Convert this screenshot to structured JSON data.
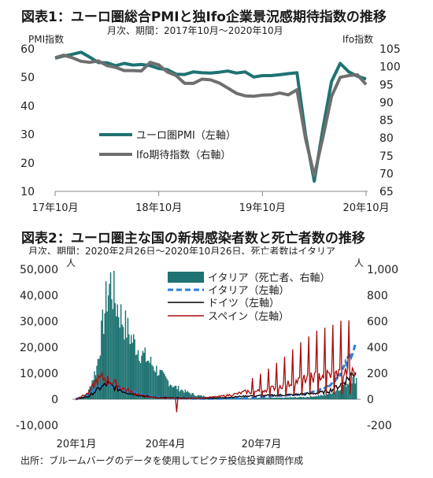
{
  "chart_data": [
    {
      "type": "line",
      "title": "図表1：ユーロ圏総合PMIと独Ifo企業景況感期待指数の推移",
      "subtitle": "月次、期間：2017年10月～2020年10月",
      "y_left_label": "PMI指数",
      "y_right_label": "Ifo指数",
      "ylim_left": [
        10,
        60
      ],
      "ylim_right": [
        65,
        105
      ],
      "yticks_left": [
        "60",
        "50",
        "40",
        "30",
        "20",
        "10"
      ],
      "yticks_right": [
        "105",
        "100",
        "95",
        "90",
        "85",
        "80",
        "75",
        "70",
        "65"
      ],
      "xticks": [
        "17年10月",
        "18年10月",
        "19年10月",
        "20年10月"
      ],
      "x": [
        "2017-10",
        "2017-11",
        "2017-12",
        "2018-01",
        "2018-02",
        "2018-03",
        "2018-04",
        "2018-05",
        "2018-06",
        "2018-07",
        "2018-08",
        "2018-09",
        "2018-10",
        "2018-11",
        "2018-12",
        "2019-01",
        "2019-02",
        "2019-03",
        "2019-04",
        "2019-05",
        "2019-06",
        "2019-07",
        "2019-08",
        "2019-09",
        "2019-10",
        "2019-11",
        "2019-12",
        "2020-01",
        "2020-02",
        "2020-03",
        "2020-04",
        "2020-05",
        "2020-06",
        "2020-07",
        "2020-08",
        "2020-09",
        "2020-10"
      ],
      "series": [
        {
          "name": "ユーロ圏PMI（左軸）",
          "axis": "left",
          "color": "#1f7372",
          "values": [
            56.7,
            57.5,
            58.1,
            58.8,
            57.1,
            55.2,
            55.1,
            54.1,
            54.9,
            54.3,
            54.5,
            54.1,
            53.1,
            52.7,
            51.1,
            51.0,
            51.9,
            51.6,
            51.5,
            51.8,
            52.2,
            51.5,
            51.9,
            50.1,
            50.6,
            50.6,
            50.9,
            51.3,
            51.6,
            29.7,
            13.6,
            31.9,
            48.5,
            54.9,
            51.9,
            50.4,
            49.4
          ]
        },
        {
          "name": "Ifo期待指数（右軸）",
          "axis": "right",
          "color": "#6f6f6f",
          "values": [
            102.5,
            103.2,
            102.5,
            101.5,
            101.2,
            101.6,
            100.3,
            99.8,
            98.9,
            98.9,
            98.8,
            101.2,
            100.5,
            98.5,
            97.5,
            95.3,
            95.3,
            96.5,
            96.3,
            95.4,
            94.0,
            92.5,
            91.8,
            91.7,
            92.0,
            92.1,
            92.6,
            92.1,
            93.5,
            79.7,
            69.4,
            80.1,
            91.6,
            97.0,
            97.5,
            97.7,
            95.0
          ]
        }
      ]
    },
    {
      "type": "bar+line",
      "title": "図表2：ユーロ圏主な国の新規感染者数と死亡者数の推移",
      "subtitle": "月次、期間：2020年2月26日～2020年10月26日、死亡者数はイタリア",
      "y_left_label": "人",
      "y_right_label": "人",
      "ylim_left": [
        -10000,
        50000
      ],
      "ylim_right": [
        -200,
        1000
      ],
      "yticks_left": [
        "50,000",
        "40,000",
        "30,000",
        "20,000",
        "10,000",
        "0",
        "-10,000"
      ],
      "yticks_right": [
        "1,000",
        "800",
        "600",
        "400",
        "200",
        "0",
        "-200"
      ],
      "xticks": [
        "20年1月",
        "20年4月",
        "20年7月"
      ],
      "start_date": "2020-02-26",
      "days": 244,
      "series": [
        {
          "name": "イタリア（死亡者、右軸）",
          "kind": "bar",
          "axis": "right",
          "color": "#1f7372",
          "knots": [
            [
              0,
              0
            ],
            [
              10,
              40
            ],
            [
              18,
              250
            ],
            [
              24,
              620
            ],
            [
              27,
              800
            ],
            [
              30,
              900
            ],
            [
              34,
              760
            ],
            [
              40,
              620
            ],
            [
              48,
              470
            ],
            [
              56,
              360
            ],
            [
              65,
              280
            ],
            [
              75,
              180
            ],
            [
              85,
              100
            ],
            [
              95,
              60
            ],
            [
              105,
              30
            ],
            [
              120,
              15
            ],
            [
              150,
              8
            ],
            [
              180,
              12
            ],
            [
              200,
              18
            ],
            [
              215,
              30
            ],
            [
              225,
              60
            ],
            [
              235,
              120
            ],
            [
              240,
              150
            ],
            [
              244,
              160
            ]
          ]
        },
        {
          "name": "イタリア（左軸）",
          "kind": "line",
          "axis": "left",
          "color": "#2a7fd6",
          "dash": true,
          "knots": [
            [
              0,
              0
            ],
            [
              10,
              1500
            ],
            [
              20,
              5000
            ],
            [
              25,
              6000
            ],
            [
              30,
              5200
            ],
            [
              36,
              4500
            ],
            [
              44,
              3200
            ],
            [
              52,
              2500
            ],
            [
              60,
              1700
            ],
            [
              70,
              900
            ],
            [
              80,
              450
            ],
            [
              95,
              300
            ],
            [
              120,
              250
            ],
            [
              150,
              400
            ],
            [
              170,
              1200
            ],
            [
              185,
              1600
            ],
            [
              200,
              2000
            ],
            [
              212,
              3500
            ],
            [
              222,
              6000
            ],
            [
              230,
              9500
            ],
            [
              236,
              14000
            ],
            [
              240,
              18000
            ],
            [
              244,
              21000
            ]
          ]
        },
        {
          "name": "ドイツ（左軸）",
          "kind": "line",
          "axis": "left",
          "color": "#000000",
          "knots": [
            [
              0,
              0
            ],
            [
              12,
              1200
            ],
            [
              20,
              4000
            ],
            [
              28,
              6000
            ],
            [
              34,
              4500
            ],
            [
              42,
              3000
            ],
            [
              50,
              2000
            ],
            [
              60,
              1200
            ],
            [
              70,
              700
            ],
            [
              85,
              500
            ],
            [
              110,
              400
            ],
            [
              130,
              600
            ],
            [
              150,
              1300
            ],
            [
              170,
              1500
            ],
            [
              185,
              1700
            ],
            [
              200,
              2000
            ],
            [
              215,
              2600
            ],
            [
              225,
              4000
            ],
            [
              232,
              6000
            ],
            [
              238,
              8500
            ],
            [
              244,
              11000
            ]
          ]
        },
        {
          "name": "スペイン（左軸）",
          "kind": "line",
          "axis": "left",
          "color": "#a80d0d",
          "knots": [
            [
              0,
              0
            ],
            [
              12,
              2500
            ],
            [
              18,
              7000
            ],
            [
              24,
              8200
            ],
            [
              30,
              7000
            ],
            [
              36,
              5500
            ],
            [
              42,
              4000
            ],
            [
              50,
              2500
            ],
            [
              60,
              1200
            ],
            [
              70,
              600
            ],
            [
              80,
              400
            ],
            [
              95,
              300
            ],
            [
              110,
              500
            ],
            [
              125,
              1000
            ],
            [
              140,
              2000
            ],
            [
              150,
              3000
            ],
            [
              165,
              4500
            ],
            [
              180,
              6500
            ],
            [
              195,
              9000
            ],
            [
              210,
              11000
            ],
            [
              225,
              12000
            ],
            [
              235,
              13000
            ],
            [
              244,
              12000
            ]
          ]
        }
      ]
    }
  ],
  "footer": "出所：ブルームバーグのデータを使用してピクテ投信投資顧問作成"
}
